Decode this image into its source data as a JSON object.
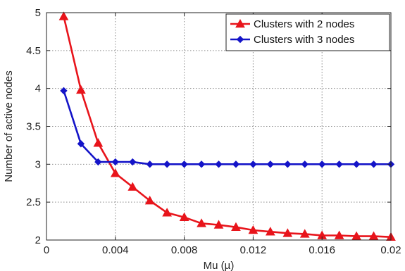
{
  "chart_data": {
    "type": "line",
    "xlabel": "Mu (µ)",
    "ylabel": "Number of active nodes",
    "xlim": [
      0,
      0.02
    ],
    "ylim": [
      2,
      5
    ],
    "xticks": [
      0,
      0.004,
      0.008,
      0.012,
      0.016,
      0.02
    ],
    "xtick_labels": [
      "0",
      "0.004",
      "0.008",
      "0.012",
      "0.016",
      "0.02"
    ],
    "yticks": [
      2,
      2.5,
      3,
      3.5,
      4,
      4.5,
      5
    ],
    "ytick_labels": [
      "2",
      "2.5",
      "3",
      "3.5",
      "4",
      "4.5",
      "5"
    ],
    "grid": true,
    "legend_position": "top-right",
    "series": [
      {
        "name": "Clusters with 2 nodes",
        "color": "#e8141b",
        "marker": "triangle",
        "x": [
          0.001,
          0.002,
          0.003,
          0.004,
          0.005,
          0.006,
          0.007,
          0.008,
          0.009,
          0.01,
          0.011,
          0.012,
          0.013,
          0.014,
          0.015,
          0.016,
          0.017,
          0.018,
          0.019,
          0.02
        ],
        "y": [
          4.95,
          3.98,
          3.28,
          2.88,
          2.7,
          2.52,
          2.36,
          2.3,
          2.22,
          2.2,
          2.17,
          2.13,
          2.11,
          2.09,
          2.08,
          2.06,
          2.06,
          2.05,
          2.05,
          2.04
        ]
      },
      {
        "name": "Clusters with 3 nodes",
        "color": "#1414c8",
        "marker": "diamond",
        "x": [
          0.001,
          0.002,
          0.003,
          0.004,
          0.005,
          0.006,
          0.007,
          0.008,
          0.009,
          0.01,
          0.011,
          0.012,
          0.013,
          0.014,
          0.015,
          0.016,
          0.017,
          0.018,
          0.019,
          0.02
        ],
        "y": [
          3.97,
          3.27,
          3.03,
          3.03,
          3.03,
          3.0,
          3.0,
          3.0,
          3.0,
          3.0,
          3.0,
          3.0,
          3.0,
          3.0,
          3.0,
          3.0,
          3.0,
          3.0,
          3.0,
          3.0
        ]
      }
    ]
  }
}
